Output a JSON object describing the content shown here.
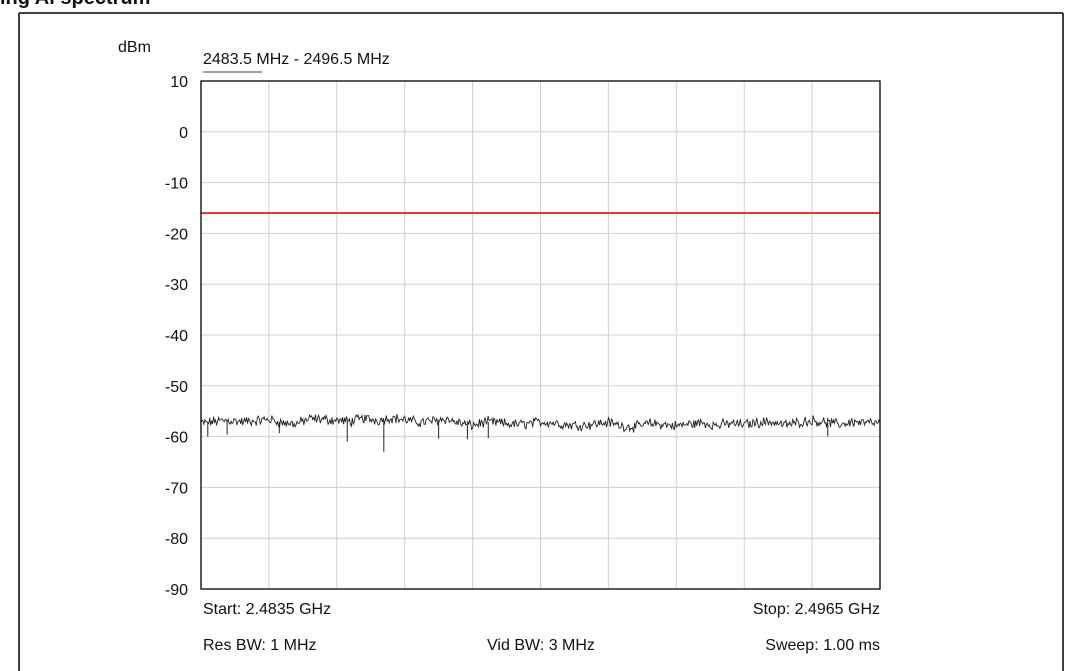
{
  "figure_title": "ing Al spectrum",
  "chart_data": {
    "type": "line",
    "ylabel": "dBm",
    "title": "2483.5 MHz - 2496.5 MHz",
    "ylim": [
      -90,
      10
    ],
    "yticks": [
      "10",
      "0",
      "-10",
      "-20",
      "-30",
      "-40",
      "-50",
      "-60",
      "-70",
      "-80",
      "-90"
    ],
    "x_start_ghz": 2.4835,
    "x_stop_ghz": 2.4965,
    "grid": true,
    "limit_line": {
      "value_dbm": -16,
      "color": "#d9302a"
    },
    "trace": {
      "color": "#222222",
      "level_dbm": [
        -57.4,
        -57.0,
        -56.8,
        -57.1,
        -56.9,
        -56.6,
        -57.3,
        -57.5,
        -56.5,
        -56.6,
        -56.8,
        -57.0,
        -56.4,
        -56.8,
        -56.3,
        -56.7,
        -57.2,
        -56.9,
        -56.5,
        -57.3,
        -57.8,
        -57.1,
        -57.3,
        -57.6,
        -57.5,
        -57.1,
        -57.3,
        -57.7,
        -57.8,
        -57.5,
        -57.2,
        -57.9,
        -58.1,
        -57.4,
        -57.6,
        -57.9,
        -57.5,
        -57.3,
        -57.8,
        -57.4,
        -57.6,
        -57.2,
        -57.1,
        -57.7,
        -57.2,
        -56.8,
        -57.2,
        -57.6,
        -57.1,
        -57.3,
        -57.4
      ]
    },
    "spikes": [
      {
        "x_ghz": 2.48363,
        "level_dbm": -60.0
      },
      {
        "x_ghz": 2.484,
        "level_dbm": -59.6
      },
      {
        "x_ghz": 2.485,
        "level_dbm": -59.3
      },
      {
        "x_ghz": 2.4863,
        "level_dbm": -61.0
      },
      {
        "x_ghz": 2.487,
        "level_dbm": -63.0
      },
      {
        "x_ghz": 2.48805,
        "level_dbm": -60.4
      },
      {
        "x_ghz": 2.4886,
        "level_dbm": -60.5
      },
      {
        "x_ghz": 2.489,
        "level_dbm": -60.3
      },
      {
        "x_ghz": 2.4955,
        "level_dbm": -60.0
      }
    ],
    "footer": {
      "start": "Start: 2.4835 GHz",
      "stop": "Stop: 2.4965 GHz",
      "res_bw": "Res BW: 1 MHz",
      "vid_bw": "Vid BW: 3 MHz",
      "sweep": "Sweep: 1.00 ms"
    }
  }
}
